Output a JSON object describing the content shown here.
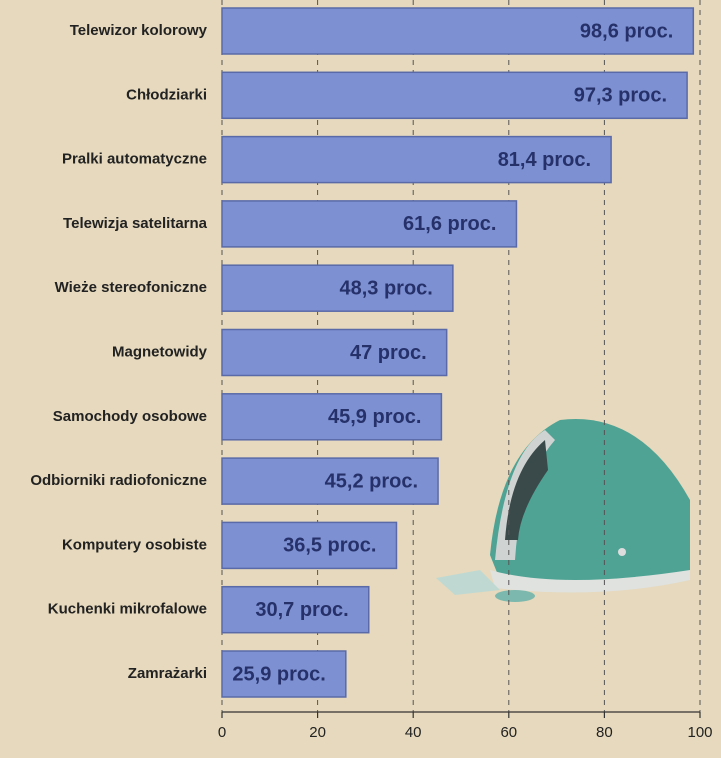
{
  "chart_data": {
    "type": "barh",
    "categories": [
      "Telewizor kolorowy",
      "Chłodziarki",
      "Pralki automatyczne",
      "Telewizja satelitarna",
      "Wieże stereofoniczne",
      "Magnetowidy",
      "Samochody osobowe",
      "Odbiorniki radiofoniczne",
      "Komputery osobiste",
      "Kuchenki mikrofalowe",
      "Zamrażarki"
    ],
    "values": [
      98.6,
      97.3,
      81.4,
      61.6,
      48.3,
      47,
      45.9,
      45.2,
      36.5,
      30.7,
      25.9
    ],
    "value_labels": [
      "98,6 proc.",
      "97,3 proc.",
      "81,4 proc.",
      "61,6 proc.",
      "48,3 proc.",
      "47 proc.",
      "45,9 proc.",
      "45,2 proc.",
      "36,5 proc.",
      "30,7 proc.",
      "25,9 proc."
    ],
    "color": "#7d90d2",
    "xlim": [
      0,
      100
    ],
    "xticks": [
      0,
      20,
      40,
      60,
      80,
      100
    ],
    "grid": true
  }
}
